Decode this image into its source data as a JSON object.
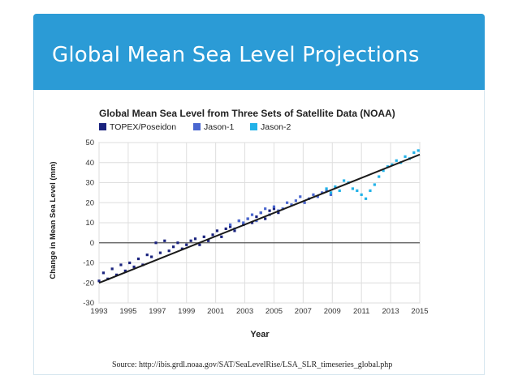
{
  "slide": {
    "title": "Global Mean Sea Level Projections",
    "source": "Source: http://ibis.grdl.noaa.gov/SAT/SeaLevelRise/LSA_SLR_timeseries_global.php"
  },
  "colors": {
    "title_bar": "#2b9bd6",
    "topex": "#1a237e",
    "jason1": "#4a67d0",
    "jason2": "#22b2e8",
    "trend": "#1a1a1a"
  },
  "chart_data": {
    "type": "scatter",
    "title": "Global Mean Sea Level from Three Sets of Satellite Data (NOAA)",
    "xlabel": "Year",
    "ylabel": "Change in Mean Sea Level (mm)",
    "xlim": [
      1993,
      2015
    ],
    "ylim": [
      -30,
      50
    ],
    "xticks": [
      1993,
      1995,
      1997,
      1999,
      2001,
      2003,
      2005,
      2007,
      2009,
      2011,
      2013,
      2015
    ],
    "yticks": [
      -30,
      -20,
      -10,
      0,
      10,
      20,
      30,
      40,
      50
    ],
    "grid": true,
    "legend": "top-left",
    "trend_line": {
      "x": [
        1993,
        2015
      ],
      "y": [
        -20,
        44
      ]
    },
    "series": [
      {
        "name": "TOPEX/Poseidon",
        "color": "#1a237e",
        "x": [
          1993.0,
          1993.3,
          1993.6,
          1993.9,
          1994.2,
          1994.5,
          1994.8,
          1995.1,
          1995.4,
          1995.7,
          1996.0,
          1996.3,
          1996.6,
          1996.9,
          1997.2,
          1997.5,
          1997.8,
          1998.1,
          1998.4,
          1998.7,
          1999.0,
          1999.3,
          1999.6,
          1999.9,
          2000.2,
          2000.5,
          2000.8,
          2001.1,
          2001.4,
          2001.7,
          2002.0,
          2002.3,
          2002.6,
          2002.9,
          2003.2,
          2003.5,
          2003.8,
          2004.1,
          2004.4,
          2004.7,
          2005.0,
          2005.3
        ],
        "y": [
          -19,
          -15,
          -18,
          -13,
          -16,
          -11,
          -14,
          -10,
          -12,
          -8,
          -11,
          -6,
          -7,
          0,
          -5,
          1,
          -4,
          -2,
          0,
          -3,
          -1,
          1,
          2,
          -1,
          3,
          1,
          4,
          6,
          3,
          7,
          8,
          6,
          11,
          9,
          12,
          10,
          13,
          15,
          12,
          16,
          17,
          15
        ]
      },
      {
        "name": "Jason-1",
        "color": "#4a67d0",
        "x": [
          2002.0,
          2002.3,
          2002.6,
          2002.9,
          2003.2,
          2003.5,
          2003.8,
          2004.1,
          2004.4,
          2004.7,
          2005.0,
          2005.3,
          2005.6,
          2005.9,
          2006.2,
          2006.5,
          2006.8,
          2007.1,
          2007.4,
          2007.7,
          2008.0,
          2008.3,
          2008.6,
          2008.9
        ],
        "y": [
          9,
          7,
          11,
          10,
          12,
          14,
          11,
          15,
          17,
          14,
          18,
          16,
          17,
          20,
          19,
          21,
          23,
          20,
          22,
          24,
          23,
          25,
          26,
          24
        ]
      },
      {
        "name": "Jason-2",
        "color": "#22b2e8",
        "x": [
          2008.6,
          2008.9,
          2009.2,
          2009.5,
          2009.8,
          2010.1,
          2010.4,
          2010.7,
          2011.0,
          2011.3,
          2011.6,
          2011.9,
          2012.2,
          2012.5,
          2012.8,
          2013.1,
          2013.4,
          2013.7,
          2014.0,
          2014.3,
          2014.6,
          2014.9
        ],
        "y": [
          27,
          25,
          28,
          26,
          31,
          30,
          27,
          26,
          24,
          22,
          26,
          29,
          33,
          36,
          38,
          39,
          41,
          40,
          43,
          42,
          45,
          46
        ]
      }
    ]
  }
}
